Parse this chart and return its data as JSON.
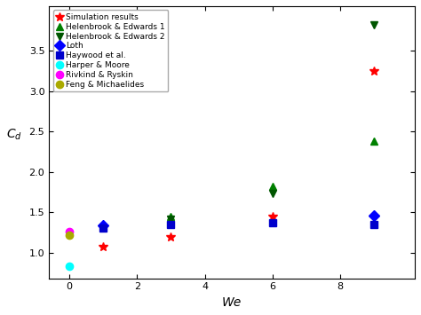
{
  "title": "",
  "xlabel": "We",
  "ylabel": "$C_d$",
  "xlim": [
    -0.6,
    10.2
  ],
  "ylim": [
    0.68,
    4.05
  ],
  "xticks": [
    0,
    2,
    4,
    6,
    8
  ],
  "yticks": [
    1.0,
    1.5,
    2.0,
    2.5,
    3.0,
    3.5
  ],
  "series": [
    {
      "label": "Simulation results",
      "color": "red",
      "marker": "*",
      "markersize": 7,
      "x": [
        1,
        3,
        6,
        9
      ],
      "y": [
        1.07,
        1.19,
        1.45,
        3.25
      ]
    },
    {
      "label": "Helenbrook & Edwards 1",
      "color": "#008000",
      "marker": "^",
      "markersize": 6,
      "x": [
        3,
        6,
        9
      ],
      "y": [
        1.44,
        1.82,
        2.38
      ]
    },
    {
      "label": "Helenbrook & Edwards 2",
      "color": "#005500",
      "marker": "v",
      "markersize": 6,
      "x": [
        3,
        6,
        9
      ],
      "y": [
        1.41,
        1.73,
        3.82
      ]
    },
    {
      "label": "Loth",
      "color": "blue",
      "marker": "D",
      "markersize": 6,
      "x": [
        1,
        9
      ],
      "y": [
        1.34,
        1.46
      ]
    },
    {
      "label": "Haywood et al.",
      "color": "#0000cc",
      "marker": "s",
      "markersize": 6,
      "x": [
        1,
        3,
        6,
        9
      ],
      "y": [
        1.3,
        1.35,
        1.37,
        1.35
      ]
    },
    {
      "label": "Harper & Moore",
      "color": "cyan",
      "marker": "o",
      "markersize": 6,
      "x": [
        0
      ],
      "y": [
        0.83
      ]
    },
    {
      "label": "Rivkind & Ryskin",
      "color": "magenta",
      "marker": "o",
      "markersize": 6,
      "x": [
        0
      ],
      "y": [
        1.26
      ]
    },
    {
      "label": "Feng & Michaelides",
      "color": "#aaaa00",
      "marker": "o",
      "markersize": 6,
      "x": [
        0
      ],
      "y": [
        1.21
      ]
    }
  ],
  "figwidth": 4.74,
  "figheight": 3.55,
  "dpi": 100
}
